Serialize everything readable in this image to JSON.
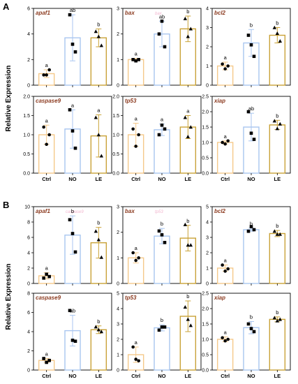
{
  "figure": {
    "y_axis_label": "Relative Expression",
    "categories": [
      "Ctrl",
      "NO",
      "LE"
    ],
    "bar_colors": [
      "#F5C98A",
      "#A9C6F0",
      "#C9A237"
    ],
    "marker_color": "#000000",
    "title_color": "#8B3A1F",
    "ghost_text_color": "#f2b6cf"
  },
  "chart_data": [
    {
      "panel": "A",
      "type": "bar",
      "title": "apaf1",
      "ghost": "",
      "categories": [
        "Ctrl",
        "NO",
        "LE"
      ],
      "values": [
        0.9,
        3.7,
        3.7
      ],
      "errors": [
        0.3,
        1.8,
        0.7
      ],
      "sig": [
        "a",
        "ab",
        "b"
      ],
      "ylim": [
        0,
        6
      ],
      "yticks": [
        0,
        2,
        4,
        6
      ],
      "marker": "circle",
      "points": [
        [
          0.8,
          0.8,
          1.2
        ],
        [
          5.5,
          3.2,
          2.6
        ],
        [
          4.2,
          3.8,
          3.1
        ]
      ]
    },
    {
      "panel": "A",
      "type": "bar",
      "title": "bax",
      "ghost": "bax",
      "categories": [
        "Ctrl",
        "NO",
        "LE"
      ],
      "values": [
        1.0,
        2.0,
        2.2
      ],
      "errors": [
        0.05,
        0.5,
        0.5
      ],
      "sig": [
        "a",
        "ab",
        "b"
      ],
      "ylim": [
        0,
        3
      ],
      "yticks": [
        0,
        1,
        2,
        3
      ],
      "marker": "square",
      "points": [
        [
          1.0,
          0.95,
          1.0
        ],
        [
          2.0,
          2.5,
          1.5
        ],
        [
          2.6,
          1.9,
          2.2
        ]
      ]
    },
    {
      "panel": "A",
      "type": "bar",
      "title": "bcl2",
      "ghost": "",
      "categories": [
        "Ctrl",
        "NO",
        "LE"
      ],
      "values": [
        1.0,
        2.2,
        2.6
      ],
      "errors": [
        0.2,
        0.7,
        0.4
      ],
      "sig": [
        "a",
        "b",
        "b"
      ],
      "ylim": [
        0,
        4
      ],
      "yticks": [
        0,
        1,
        2,
        3,
        4
      ],
      "marker": "circle",
      "points": [
        [
          1.1,
          0.85,
          1.0
        ],
        [
          2.6,
          2.1,
          1.5
        ],
        [
          3.0,
          2.7,
          2.3
        ]
      ]
    },
    {
      "panel": "A",
      "type": "bar",
      "title": "caspase9",
      "ghost": "",
      "categories": [
        "Ctrl",
        "NO",
        "LE"
      ],
      "values": [
        1.0,
        1.15,
        0.97
      ],
      "errors": [
        0.25,
        0.5,
        0.55
      ],
      "sig": [
        "a",
        "a",
        "a"
      ],
      "ylim": [
        0,
        2
      ],
      "yticks": [
        0.0,
        0.5,
        1.0,
        1.5,
        2.0
      ],
      "marker": "circle",
      "points": [
        [
          1.2,
          0.75,
          1.0
        ],
        [
          1.65,
          1.1,
          0.65
        ],
        [
          1.45,
          1.0,
          0.45
        ]
      ]
    },
    {
      "panel": "A",
      "type": "bar",
      "title": "tp53",
      "ghost": "",
      "categories": [
        "Ctrl",
        "NO",
        "LE"
      ],
      "values": [
        1.0,
        1.13,
        1.2
      ],
      "errors": [
        0.3,
        0.15,
        0.3
      ],
      "sig": [
        "a",
        "a",
        "a"
      ],
      "ylim": [
        0,
        2
      ],
      "yticks": [
        0.0,
        0.5,
        1.0,
        1.5,
        2.0
      ],
      "marker": "circle",
      "points": [
        [
          1.15,
          0.7,
          1.0
        ],
        [
          1.0,
          1.25,
          1.15
        ],
        [
          1.45,
          0.95,
          1.2
        ]
      ]
    },
    {
      "panel": "A",
      "type": "bar",
      "title": "xiap",
      "ghost": "",
      "categories": [
        "Ctrl",
        "NO",
        "LE"
      ],
      "values": [
        1.0,
        1.5,
        1.57
      ],
      "errors": [
        0.05,
        0.45,
        0.15
      ],
      "sig": [
        "a",
        "ab",
        "b"
      ],
      "ylim": [
        0,
        2.5
      ],
      "yticks": [
        0.0,
        0.5,
        1.0,
        1.5,
        2.0,
        2.5
      ],
      "marker": "circle",
      "points": [
        [
          1.0,
          0.95,
          1.05
        ],
        [
          2.0,
          1.3,
          1.1
        ],
        [
          1.7,
          1.45,
          1.6
        ]
      ]
    },
    {
      "panel": "B",
      "type": "bar",
      "title": "apaf1",
      "ghost": "caspase9",
      "categories": [
        "Ctrl",
        "NO",
        "LE"
      ],
      "values": [
        1.0,
        6.3,
        5.3
      ],
      "errors": [
        0.4,
        2.5,
        2.0
      ],
      "sig": [
        "a",
        "b",
        "b"
      ],
      "ylim": [
        0,
        10
      ],
      "yticks": [
        0,
        2,
        4,
        6,
        8,
        10
      ],
      "marker": "square",
      "points": [
        [
          0.7,
          1.2,
          0.9
        ],
        [
          8.3,
          6.5,
          4.1
        ],
        [
          6.8,
          5.7,
          3.4
        ]
      ]
    },
    {
      "panel": "B",
      "type": "bar",
      "title": "bax",
      "ghost": "tp53",
      "categories": [
        "Ctrl",
        "NO",
        "LE"
      ],
      "values": [
        1.0,
        1.85,
        1.77
      ],
      "errors": [
        0.2,
        0.3,
        0.5
      ],
      "sig": [
        "a",
        "b",
        "b"
      ],
      "ylim": [
        0,
        3
      ],
      "yticks": [
        0,
        1,
        2,
        3
      ],
      "marker": "circle",
      "points": [
        [
          1.2,
          0.9,
          1.0
        ],
        [
          2.05,
          1.9,
          1.6
        ],
        [
          2.3,
          1.5,
          1.5
        ]
      ]
    },
    {
      "panel": "B",
      "type": "bar",
      "title": "bcl2",
      "ghost": "",
      "categories": [
        "Ctrl",
        "NO",
        "LE"
      ],
      "values": [
        1.0,
        3.5,
        3.25
      ],
      "errors": [
        0.2,
        0.1,
        0.2
      ],
      "sig": [
        "a",
        "b",
        "b"
      ],
      "ylim": [
        0,
        5
      ],
      "yticks": [
        0,
        1,
        2,
        3,
        4,
        5
      ],
      "marker": "circle",
      "points": [
        [
          1.2,
          0.8,
          0.95
        ],
        [
          3.4,
          3.7,
          3.5
        ],
        [
          3.4,
          3.2,
          3.2
        ]
      ]
    },
    {
      "panel": "B",
      "type": "bar",
      "title": "caspase9",
      "ghost": "",
      "categories": [
        "Ctrl",
        "NO",
        "LE"
      ],
      "values": [
        1.0,
        4.1,
        4.2
      ],
      "errors": [
        0.2,
        1.6,
        0.4
      ],
      "sig": [
        "a",
        "ab",
        "b"
      ],
      "ylim": [
        0,
        8
      ],
      "yticks": [
        0,
        2,
        4,
        6,
        8
      ],
      "marker": "square",
      "points": [
        [
          1.2,
          0.8,
          1.0
        ],
        [
          6.2,
          3.1,
          3.0
        ],
        [
          4.5,
          4.2,
          4.0
        ]
      ]
    },
    {
      "panel": "B",
      "type": "bar",
      "title": "tp53",
      "ghost": "",
      "categories": [
        "Ctrl",
        "NO",
        "LE"
      ],
      "values": [
        1.0,
        2.75,
        3.5
      ],
      "errors": [
        0.5,
        0.2,
        1.0
      ],
      "sig": [
        "a",
        "b",
        "b"
      ],
      "ylim": [
        0,
        5
      ],
      "yticks": [
        0,
        1,
        2,
        3,
        4,
        5
      ],
      "marker": "circle",
      "points": [
        [
          1.5,
          0.7,
          0.6
        ],
        [
          2.6,
          2.8,
          2.8
        ],
        [
          4.1,
          3.3,
          2.9
        ]
      ]
    },
    {
      "panel": "B",
      "type": "bar",
      "title": "xiap",
      "ghost": "",
      "categories": [
        "Ctrl",
        "NO",
        "LE"
      ],
      "values": [
        1.0,
        1.38,
        1.65
      ],
      "errors": [
        0.08,
        0.2,
        0.08
      ],
      "sig": [
        "a",
        "b",
        "b"
      ],
      "ylim": [
        0,
        2.5
      ],
      "yticks": [
        0.0,
        0.5,
        1.0,
        1.5,
        2.0,
        2.5
      ],
      "marker": "circle",
      "points": [
        [
          1.05,
          0.95,
          1.0
        ],
        [
          1.5,
          1.35,
          1.25
        ],
        [
          1.7,
          1.6,
          1.65
        ]
      ]
    }
  ]
}
